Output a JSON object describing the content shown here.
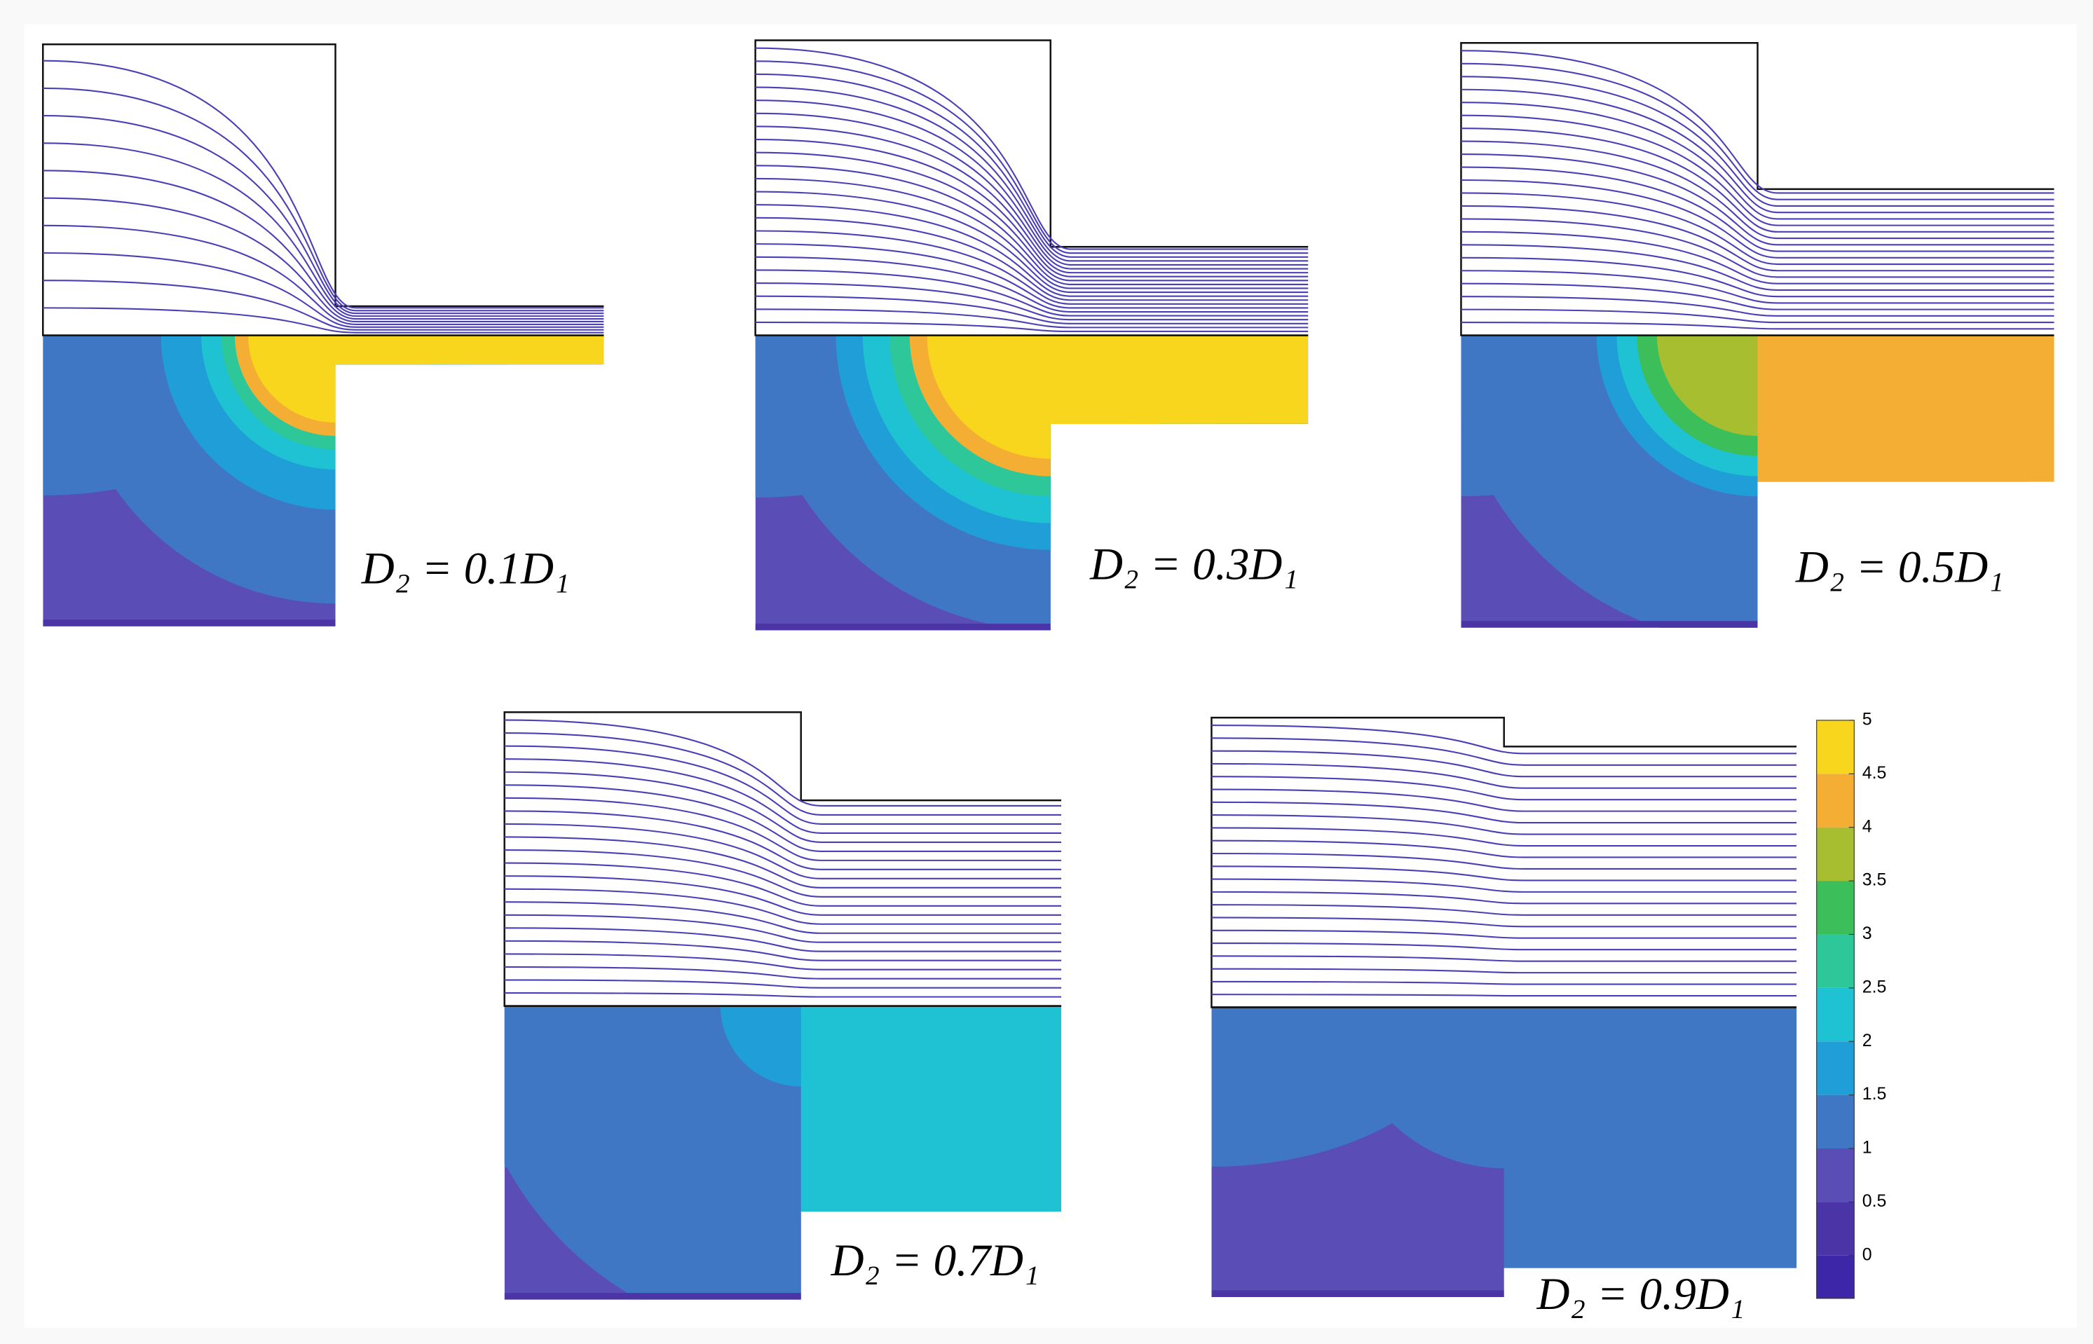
{
  "chart_data": {
    "type": "contour-panels",
    "panels": [
      {
        "label": "D₂ = 0.1D₁",
        "ratio": 0.1
      },
      {
        "label": "D₂ = 0.3D₁",
        "ratio": 0.3
      },
      {
        "label": "D₂ = 0.5D₁",
        "ratio": 0.5
      },
      {
        "label": "D₂ = 0.7D₁",
        "ratio": 0.7
      },
      {
        "label": "D₂ = 0.9D₁",
        "ratio": 0.9
      }
    ],
    "colorbar": {
      "ylim": [
        -0.4,
        5
      ],
      "yticks": [
        0,
        0.5,
        1,
        1.5,
        2,
        2.5,
        3,
        3.5,
        4,
        4.5,
        5
      ],
      "colors": [
        "#3e26a8",
        "#4a34a6",
        "#5a4db5",
        "#3f77c4",
        "#1f9ed8",
        "#1fc2d2",
        "#2ec79a",
        "#3cbf5a",
        "#a6be2f",
        "#f5ae34",
        "#f9d61e"
      ]
    }
  }
}
